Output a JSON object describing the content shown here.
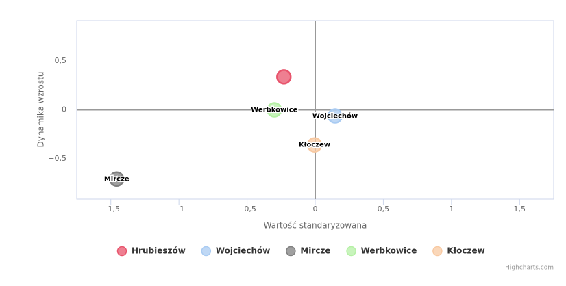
{
  "chart_data": {
    "type": "bubble",
    "x_label": "Wartość standaryzowana",
    "y_label": "Dynamika wzrostu",
    "credit": "Highcharts.com",
    "xlim": [
      -1.75,
      1.75
    ],
    "xticks": [
      {
        "value": -1.5,
        "label": "−1,5"
      },
      {
        "value": -1,
        "label": "−1"
      },
      {
        "value": -0.5,
        "label": "−0,5"
      },
      0,
      {
        "value": 0.5,
        "label": "0,5"
      },
      1,
      {
        "value": 1.5,
        "label": "1,5"
      }
    ],
    "ylim": [
      -0.91,
      0.91
    ],
    "yticks": [
      {
        "value": -0.5,
        "label": "−0,5"
      },
      0,
      {
        "value": 0.5,
        "label": "0,5"
      }
    ],
    "grid": false,
    "legend": "bottom",
    "series": [
      {
        "name": "Hrubieszów",
        "color": "#e8546c",
        "x": [
          -0.23
        ],
        "values": [
          0.336
        ]
      },
      {
        "name": "Wojciechów",
        "color": "#a9cbf2",
        "x": [
          0.146
        ],
        "values": [
          -0.063
        ]
      },
      {
        "name": "Mircze",
        "color": "#808080",
        "x": [
          -1.457
        ],
        "values": [
          -0.706
        ]
      },
      {
        "name": "Werbkowice",
        "color": "#b5f0a5",
        "x": [
          -0.3
        ],
        "values": [
          0.0
        ]
      },
      {
        "name": "Kłoczew",
        "color": "#f8c9a2",
        "x": [
          -0.005
        ],
        "values": [
          -0.357
        ]
      }
    ]
  }
}
